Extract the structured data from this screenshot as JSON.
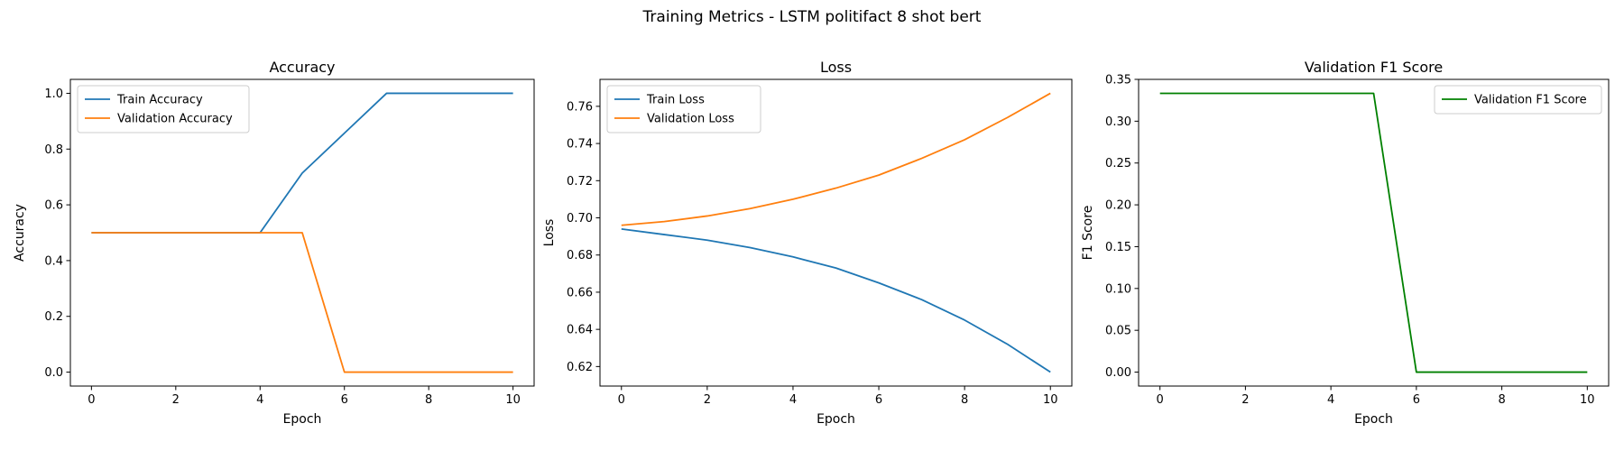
{
  "figure": {
    "suptitle": "Training Metrics - LSTM politifact 8 shot bert"
  },
  "colors": {
    "blue": "#1f77b4",
    "orange": "#ff7f0e",
    "green": "#008000"
  },
  "chart_data": [
    {
      "type": "line",
      "title": "Accuracy",
      "xlabel": "Epoch",
      "ylabel": "Accuracy",
      "xlim": [
        -0.5,
        10.5
      ],
      "ylim": [
        -0.05,
        1.05
      ],
      "xticks": [
        0,
        2,
        4,
        6,
        8,
        10
      ],
      "yticks": [
        0.0,
        0.2,
        0.4,
        0.6,
        0.8,
        1.0
      ],
      "ytick_labels": [
        "0.0",
        "0.2",
        "0.4",
        "0.6",
        "0.8",
        "1.0"
      ],
      "legend": "top-left",
      "x": [
        0,
        1,
        2,
        3,
        4,
        5,
        6,
        7,
        8,
        9,
        10
      ],
      "series": [
        {
          "name": "Train Accuracy",
          "color": "#1f77b4",
          "values": [
            0.5,
            0.5,
            0.5,
            0.5,
            0.5,
            0.714,
            0.857,
            1.0,
            1.0,
            1.0,
            1.0
          ]
        },
        {
          "name": "Validation Accuracy",
          "color": "#ff7f0e",
          "values": [
            0.5,
            0.5,
            0.5,
            0.5,
            0.5,
            0.5,
            0.0,
            0.0,
            0.0,
            0.0,
            0.0
          ]
        }
      ]
    },
    {
      "type": "line",
      "title": "Loss",
      "xlabel": "Epoch",
      "ylabel": "Loss",
      "xlim": [
        -0.5,
        10.5
      ],
      "ylim": [
        0.6095,
        0.7745
      ],
      "xticks": [
        0,
        2,
        4,
        6,
        8,
        10
      ],
      "yticks": [
        0.62,
        0.64,
        0.66,
        0.68,
        0.7,
        0.72,
        0.74,
        0.76
      ],
      "ytick_labels": [
        "0.62",
        "0.64",
        "0.66",
        "0.68",
        "0.70",
        "0.72",
        "0.74",
        "0.76"
      ],
      "legend": "top-left",
      "x": [
        0,
        1,
        2,
        3,
        4,
        5,
        6,
        7,
        8,
        9,
        10
      ],
      "series": [
        {
          "name": "Train Loss",
          "color": "#1f77b4",
          "values": [
            0.694,
            0.691,
            0.688,
            0.684,
            0.679,
            0.673,
            0.665,
            0.656,
            0.645,
            0.632,
            0.617
          ]
        },
        {
          "name": "Validation Loss",
          "color": "#ff7f0e",
          "values": [
            0.696,
            0.698,
            0.701,
            0.705,
            0.71,
            0.716,
            0.723,
            0.732,
            0.742,
            0.754,
            0.767
          ]
        }
      ]
    },
    {
      "type": "line",
      "title": "Validation F1 Score",
      "xlabel": "Epoch",
      "ylabel": "F1 Score",
      "xlim": [
        -0.5,
        10.5
      ],
      "ylim": [
        -0.01667,
        0.35
      ],
      "xticks": [
        0,
        2,
        4,
        6,
        8,
        10
      ],
      "yticks": [
        0.0,
        0.05,
        0.1,
        0.15,
        0.2,
        0.25,
        0.3,
        0.35
      ],
      "ytick_labels": [
        "0.00",
        "0.05",
        "0.10",
        "0.15",
        "0.20",
        "0.25",
        "0.30",
        "0.35"
      ],
      "legend": "top-right",
      "x": [
        0,
        1,
        2,
        3,
        4,
        5,
        6,
        7,
        8,
        9,
        10
      ],
      "series": [
        {
          "name": "Validation F1 Score",
          "color": "#008000",
          "values": [
            0.3333,
            0.3333,
            0.3333,
            0.3333,
            0.3333,
            0.3333,
            0.0,
            0.0,
            0.0,
            0.0,
            0.0
          ]
        }
      ]
    }
  ]
}
